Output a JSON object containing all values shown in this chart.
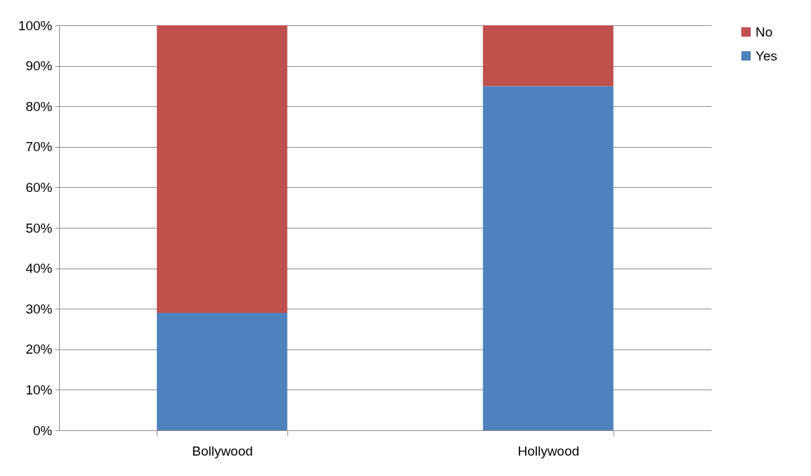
{
  "chart_data": {
    "type": "bar",
    "stacked": true,
    "categories": [
      "Bollywood",
      "Hollywood"
    ],
    "series": [
      {
        "name": "Yes",
        "color": "#4f81bd",
        "values": [
          29,
          85
        ]
      },
      {
        "name": "No",
        "color": "#c0504d",
        "values": [
          71,
          15
        ]
      }
    ],
    "ylim": [
      0,
      100
    ],
    "yticks": [
      {
        "value": 0,
        "label": "0%"
      },
      {
        "value": 10,
        "label": "10%"
      },
      {
        "value": 20,
        "label": "20%"
      },
      {
        "value": 30,
        "label": "30%"
      },
      {
        "value": 40,
        "label": "40%"
      },
      {
        "value": 50,
        "label": "50%"
      },
      {
        "value": 60,
        "label": "60%"
      },
      {
        "value": 70,
        "label": "70%"
      },
      {
        "value": 80,
        "label": "80%"
      },
      {
        "value": 90,
        "label": "90%"
      },
      {
        "value": 100,
        "label": "100%"
      }
    ],
    "grid": "y",
    "legend": "right"
  }
}
